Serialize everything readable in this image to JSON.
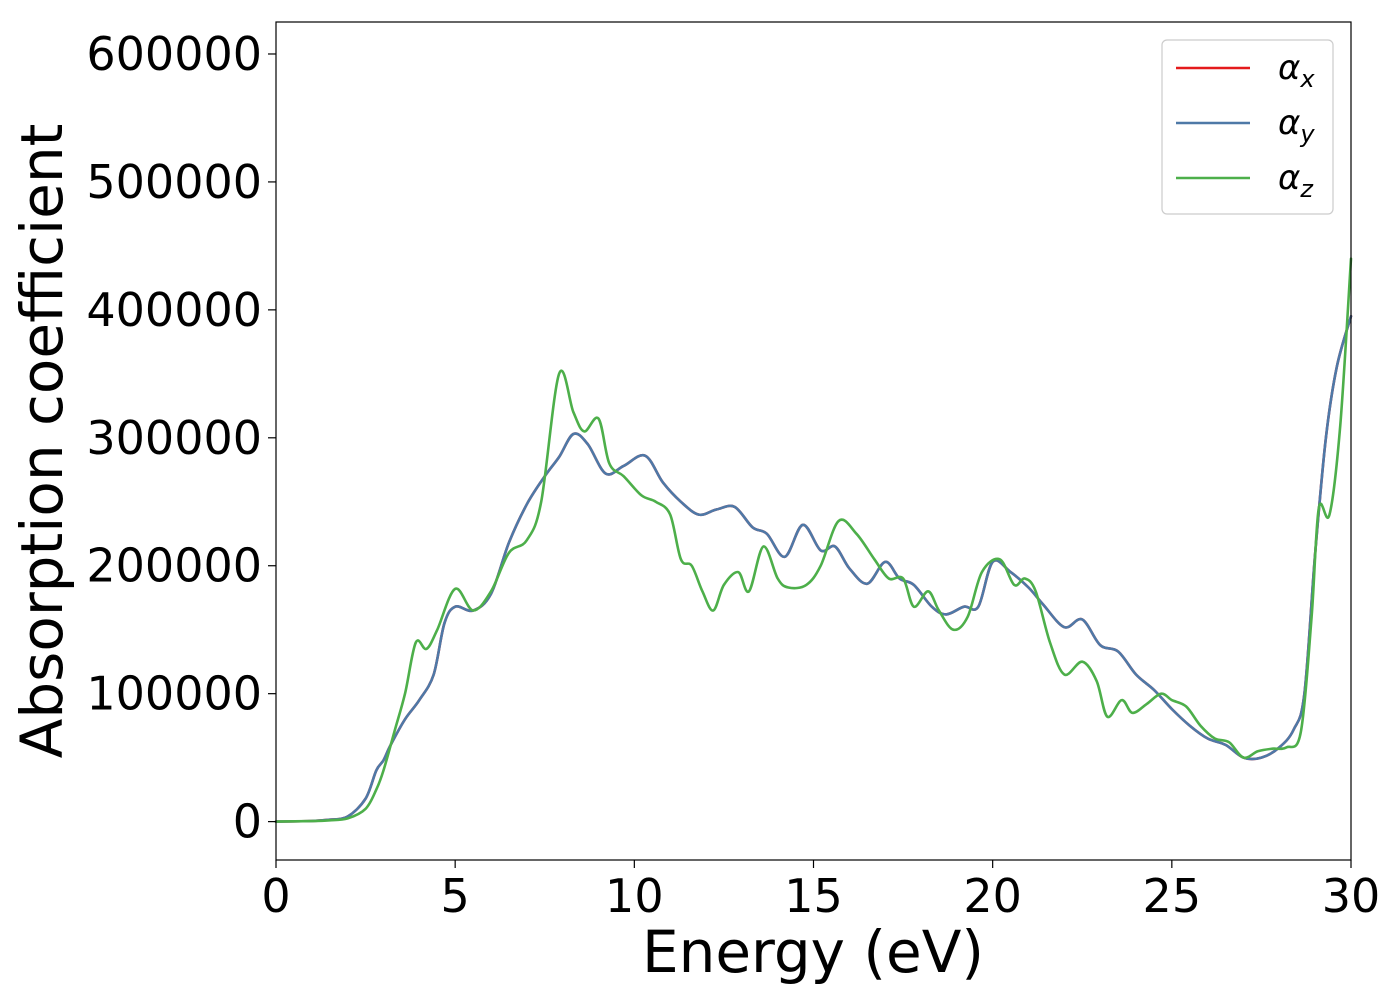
{
  "chart_data": {
    "type": "line",
    "title": "",
    "xlabel": "Energy (eV)",
    "ylabel": "Absorption coefficient",
    "xlim": [
      0,
      30
    ],
    "ylim": [
      -30000,
      625000
    ],
    "xticks": [
      0,
      5,
      10,
      15,
      20,
      25,
      30
    ],
    "xtick_labels": [
      "0",
      "5",
      "10",
      "15",
      "20",
      "25",
      "30"
    ],
    "yticks": [
      0,
      100000,
      200000,
      300000,
      400000,
      500000,
      600000
    ],
    "ytick_labels": [
      "0",
      "100000",
      "200000",
      "300000",
      "400000",
      "500000",
      "600000"
    ],
    "grid": false,
    "legend_position": "top-right",
    "series": [
      {
        "name": "α",
        "subscript": "x",
        "color": "#e41a1c",
        "x": [
          0,
          1,
          1.5,
          2,
          2.5,
          2.8,
          3.0,
          3.2,
          3.6,
          4.0,
          4.4,
          4.7,
          5.0,
          5.5,
          6.0,
          6.5,
          7.0,
          7.5,
          7.9,
          8.3,
          8.7,
          9.2,
          9.7,
          10.3,
          10.8,
          11.3,
          11.8,
          12.3,
          12.8,
          13.3,
          13.7,
          14.2,
          14.7,
          15.2,
          15.6,
          16.0,
          16.5,
          17.0,
          17.4,
          17.8,
          18.3,
          18.7,
          19.2,
          19.6,
          20.0,
          20.5,
          21.0,
          21.4,
          22.0,
          22.5,
          23.0,
          23.5,
          24.0,
          24.5,
          25.0,
          25.5,
          26.0,
          26.5,
          27.0,
          27.5,
          28.0,
          28.4,
          28.7,
          29.0,
          29.3,
          29.6,
          30.0
        ],
        "y": [
          0,
          500,
          1500,
          4000,
          18000,
          40000,
          48000,
          60000,
          80000,
          95000,
          115000,
          155000,
          168000,
          165000,
          178000,
          218000,
          248000,
          270000,
          285000,
          303000,
          295000,
          272000,
          278000,
          286000,
          265000,
          250000,
          240000,
          244000,
          246000,
          230000,
          225000,
          207000,
          232000,
          212000,
          215000,
          198000,
          186000,
          203000,
          190000,
          185000,
          168000,
          162000,
          168000,
          168000,
          203000,
          195000,
          183000,
          170000,
          152000,
          158000,
          138000,
          133000,
          115000,
          103000,
          88000,
          75000,
          65000,
          60000,
          50000,
          50000,
          58000,
          72000,
          100000,
          210000,
          300000,
          355000,
          395000
        ]
      },
      {
        "name": "α",
        "subscript": "y",
        "color": "#4e79a7",
        "x": [
          0,
          1,
          1.5,
          2,
          2.5,
          2.8,
          3.0,
          3.2,
          3.6,
          4.0,
          4.4,
          4.7,
          5.0,
          5.5,
          6.0,
          6.5,
          7.0,
          7.5,
          7.9,
          8.3,
          8.7,
          9.2,
          9.7,
          10.3,
          10.8,
          11.3,
          11.8,
          12.3,
          12.8,
          13.3,
          13.7,
          14.2,
          14.7,
          15.2,
          15.6,
          16.0,
          16.5,
          17.0,
          17.4,
          17.8,
          18.3,
          18.7,
          19.2,
          19.6,
          20.0,
          20.5,
          21.0,
          21.4,
          22.0,
          22.5,
          23.0,
          23.5,
          24.0,
          24.5,
          25.0,
          25.5,
          26.0,
          26.5,
          27.0,
          27.5,
          28.0,
          28.4,
          28.7,
          29.0,
          29.3,
          29.6,
          30.0
        ],
        "y": [
          0,
          500,
          1500,
          4000,
          18000,
          40000,
          48000,
          60000,
          80000,
          95000,
          115000,
          155000,
          168000,
          165000,
          178000,
          218000,
          248000,
          270000,
          285000,
          303000,
          295000,
          272000,
          278000,
          286000,
          265000,
          250000,
          240000,
          244000,
          246000,
          230000,
          225000,
          207000,
          232000,
          212000,
          215000,
          198000,
          186000,
          203000,
          190000,
          185000,
          168000,
          162000,
          168000,
          168000,
          203000,
          195000,
          183000,
          170000,
          152000,
          158000,
          138000,
          133000,
          115000,
          103000,
          88000,
          75000,
          65000,
          60000,
          50000,
          50000,
          58000,
          72000,
          100000,
          210000,
          300000,
          355000,
          395000
        ]
      },
      {
        "name": "α",
        "subscript": "z",
        "color": "#4daf4a",
        "x": [
          0,
          1,
          1.5,
          2,
          2.5,
          2.8,
          3.0,
          3.3,
          3.6,
          3.9,
          4.2,
          4.5,
          5.0,
          5.5,
          6.0,
          6.5,
          7.0,
          7.4,
          7.9,
          8.3,
          8.6,
          9.0,
          9.3,
          9.7,
          10.2,
          10.6,
          11.0,
          11.3,
          11.6,
          11.9,
          12.2,
          12.5,
          12.9,
          13.2,
          13.6,
          14.0,
          14.3,
          14.8,
          15.2,
          15.7,
          16.2,
          16.7,
          17.1,
          17.5,
          17.8,
          18.2,
          18.5,
          18.9,
          19.3,
          19.7,
          20.2,
          20.6,
          20.9,
          21.2,
          21.6,
          22.0,
          22.5,
          22.9,
          23.2,
          23.6,
          23.9,
          24.3,
          24.7,
          25.0,
          25.4,
          25.8,
          26.2,
          26.6,
          27.0,
          27.4,
          27.8,
          28.2,
          28.6,
          28.9,
          29.1,
          29.4,
          29.7,
          30.0
        ],
        "y": [
          0,
          400,
          1000,
          2500,
          10000,
          25000,
          40000,
          70000,
          100000,
          140000,
          135000,
          150000,
          182000,
          165000,
          180000,
          210000,
          220000,
          250000,
          350000,
          320000,
          305000,
          315000,
          280000,
          270000,
          255000,
          250000,
          240000,
          205000,
          200000,
          180000,
          165000,
          185000,
          195000,
          180000,
          215000,
          190000,
          183000,
          185000,
          200000,
          235000,
          225000,
          205000,
          190000,
          190000,
          168000,
          180000,
          165000,
          150000,
          160000,
          195000,
          205000,
          185000,
          190000,
          180000,
          140000,
          115000,
          125000,
          110000,
          82000,
          95000,
          85000,
          92000,
          100000,
          95000,
          90000,
          75000,
          65000,
          62000,
          50000,
          55000,
          57000,
          58000,
          70000,
          160000,
          245000,
          240000,
          310000,
          440000
        ]
      }
    ]
  }
}
